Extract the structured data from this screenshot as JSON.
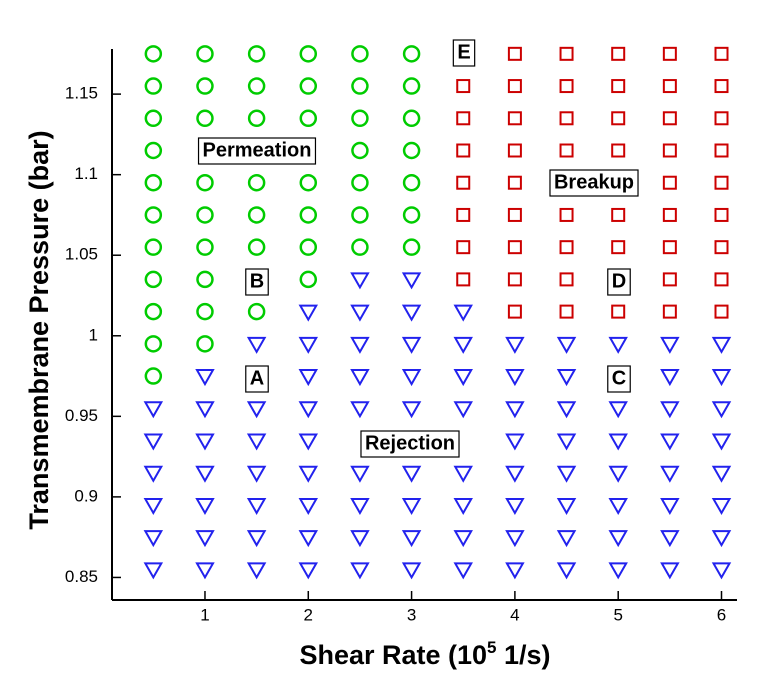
{
  "chart_data": {
    "type": "scatter",
    "xlabel": [
      "Shear Rate (10",
      "5",
      " 1/s)"
    ],
    "ylabel": "Transmembrane Pressure (bar)",
    "xlim": [
      0.1,
      6.15
    ],
    "xticks": [
      1,
      2,
      3,
      4,
      5,
      6
    ],
    "ylim": [
      0.836,
      1.178
    ],
    "yticks": [
      0.85,
      0.9,
      0.95,
      1,
      1.05,
      1.1,
      1.15
    ],
    "annotations": [
      "Permeation",
      "Breakup",
      "Rejection",
      "A",
      "B",
      "C",
      "D",
      "E"
    ],
    "series": [
      {
        "marker": "circle",
        "color": "#00cc00",
        "x": [
          0.5,
          1,
          1.5,
          2,
          2.5,
          3,
          0.5,
          1,
          1.5,
          2,
          2.5,
          3,
          0.5,
          1,
          1.5,
          2,
          2.5,
          3,
          0.5,
          2.5,
          3,
          0.5,
          1,
          1.5,
          2,
          2.5,
          3,
          0.5,
          1,
          1.5,
          2,
          2.5,
          3,
          0.5,
          1,
          1.5,
          2,
          2.5,
          3,
          0.5,
          1,
          2,
          0.5,
          1,
          1.5,
          0.5,
          1,
          0.5
        ],
        "y": [
          1.175,
          1.175,
          1.175,
          1.175,
          1.175,
          1.175,
          1.155,
          1.155,
          1.155,
          1.155,
          1.155,
          1.155,
          1.135,
          1.135,
          1.135,
          1.135,
          1.135,
          1.135,
          1.115,
          1.115,
          1.115,
          1.095,
          1.095,
          1.095,
          1.095,
          1.095,
          1.095,
          1.075,
          1.075,
          1.075,
          1.075,
          1.075,
          1.075,
          1.055,
          1.055,
          1.055,
          1.055,
          1.055,
          1.055,
          1.035,
          1.035,
          1.035,
          1.015,
          1.015,
          1.015,
          0.995,
          0.995,
          0.975
        ]
      },
      {
        "marker": "square",
        "color": "#cc0000",
        "x": [
          4,
          4.5,
          5,
          5.5,
          6,
          3.5,
          4,
          4.5,
          5,
          5.5,
          6,
          3.5,
          4,
          4.5,
          5,
          5.5,
          6,
          3.5,
          4,
          4.5,
          5,
          5.5,
          6,
          3.5,
          4,
          5.5,
          6,
          3.5,
          4,
          4.5,
          5,
          5.5,
          6,
          3.5,
          4,
          4.5,
          5,
          5.5,
          6,
          3.5,
          4,
          4.5,
          5.5,
          6,
          4,
          4.5,
          5,
          5.5,
          6
        ],
        "y": [
          1.175,
          1.175,
          1.175,
          1.175,
          1.175,
          1.155,
          1.155,
          1.155,
          1.155,
          1.155,
          1.155,
          1.135,
          1.135,
          1.135,
          1.135,
          1.135,
          1.135,
          1.115,
          1.115,
          1.115,
          1.115,
          1.115,
          1.115,
          1.095,
          1.095,
          1.095,
          1.095,
          1.075,
          1.075,
          1.075,
          1.075,
          1.075,
          1.075,
          1.055,
          1.055,
          1.055,
          1.055,
          1.055,
          1.055,
          1.035,
          1.035,
          1.035,
          1.035,
          1.035,
          1.015,
          1.015,
          1.015,
          1.015,
          1.015
        ]
      },
      {
        "marker": "triangle-down",
        "color": "#2222ee",
        "x": [
          2.5,
          3,
          2,
          2.5,
          3,
          3.5,
          1.5,
          2,
          2.5,
          3,
          3.5,
          4,
          4.5,
          5,
          5.5,
          6,
          1,
          2,
          2.5,
          3,
          3.5,
          4,
          4.5,
          5.5,
          6,
          0.5,
          1,
          1.5,
          2,
          2.5,
          3,
          3.5,
          4,
          4.5,
          5,
          5.5,
          6,
          0.5,
          1,
          1.5,
          2,
          4,
          4.5,
          5,
          5.5,
          6,
          0.5,
          1,
          1.5,
          2,
          2.5,
          3,
          3.5,
          4,
          4.5,
          5,
          5.5,
          6,
          0.5,
          1,
          1.5,
          2,
          2.5,
          3,
          3.5,
          4,
          4.5,
          5,
          5.5,
          6,
          0.5,
          1,
          1.5,
          2,
          2.5,
          3,
          3.5,
          4,
          4.5,
          5,
          5.5,
          6,
          0.5,
          1,
          1.5,
          2,
          2.5,
          3,
          3.5,
          4,
          4.5,
          5,
          5.5,
          6
        ],
        "y": [
          1.035,
          1.035,
          1.015,
          1.015,
          1.015,
          1.015,
          0.995,
          0.995,
          0.995,
          0.995,
          0.995,
          0.995,
          0.995,
          0.995,
          0.995,
          0.995,
          0.975,
          0.975,
          0.975,
          0.975,
          0.975,
          0.975,
          0.975,
          0.975,
          0.975,
          0.955,
          0.955,
          0.955,
          0.955,
          0.955,
          0.955,
          0.955,
          0.955,
          0.955,
          0.955,
          0.955,
          0.955,
          0.935,
          0.935,
          0.935,
          0.935,
          0.935,
          0.935,
          0.935,
          0.935,
          0.935,
          0.915,
          0.915,
          0.915,
          0.915,
          0.915,
          0.915,
          0.915,
          0.915,
          0.915,
          0.915,
          0.915,
          0.915,
          0.895,
          0.895,
          0.895,
          0.895,
          0.895,
          0.895,
          0.895,
          0.895,
          0.895,
          0.895,
          0.895,
          0.895,
          0.875,
          0.875,
          0.875,
          0.875,
          0.875,
          0.875,
          0.875,
          0.875,
          0.875,
          0.875,
          0.875,
          0.875,
          0.855,
          0.855,
          0.855,
          0.855,
          0.855,
          0.855,
          0.855,
          0.855,
          0.855,
          0.855,
          0.855,
          0.855
        ]
      }
    ]
  }
}
